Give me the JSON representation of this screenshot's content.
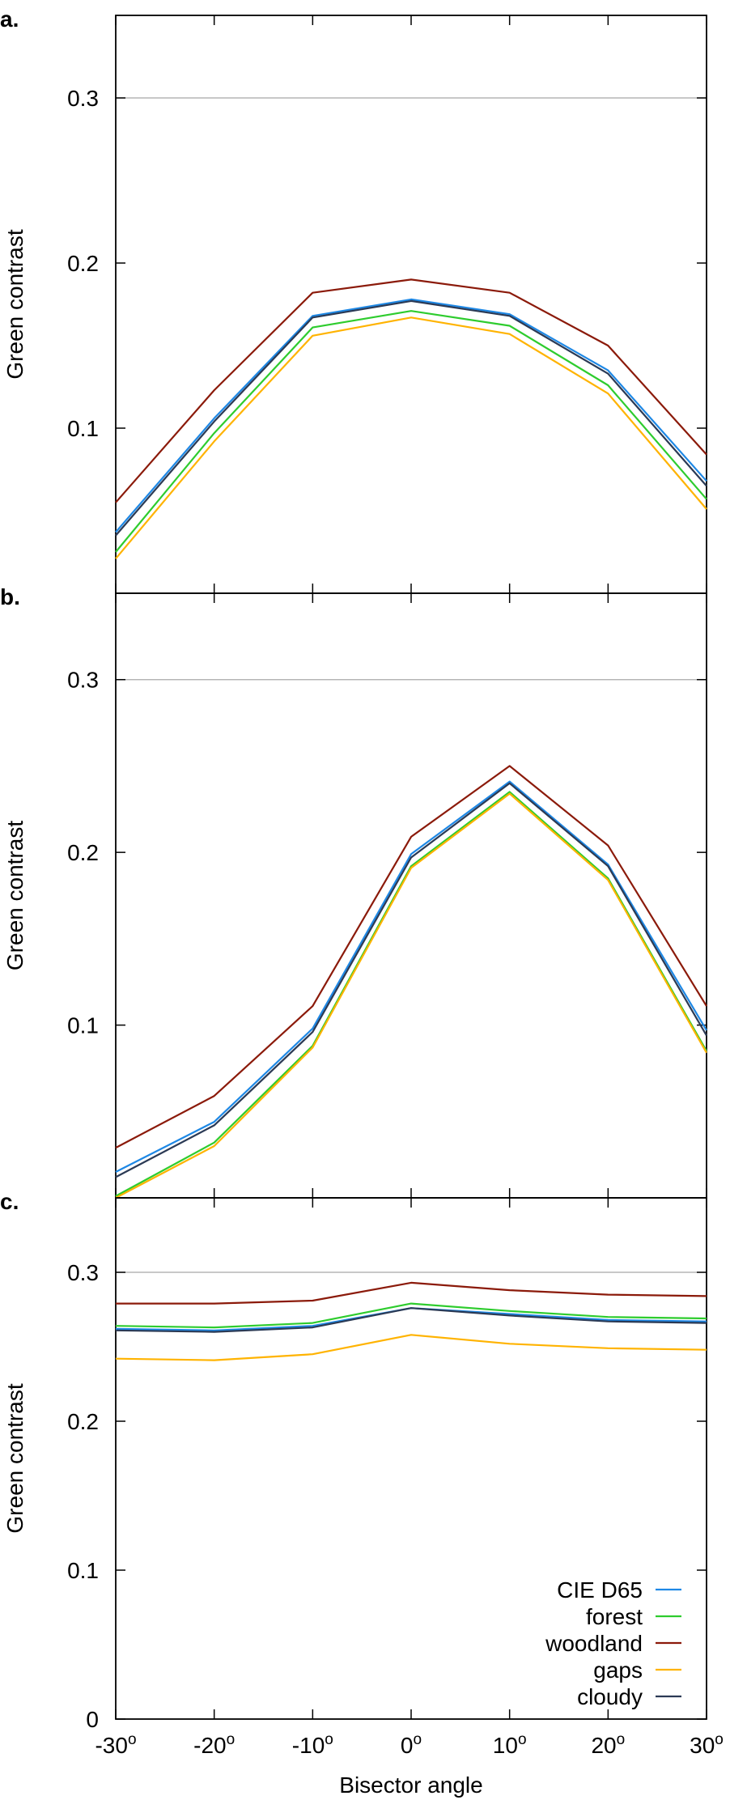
{
  "chart_data": [
    {
      "type": "line",
      "panel_label": "a.",
      "ylabel": "Green contrast",
      "xlabel": "",
      "ylim": [
        0,
        0.35
      ],
      "yticks": [
        "0.1",
        "0.2",
        "0.3"
      ],
      "ytick_values": [
        0.1,
        0.2,
        0.3
      ],
      "grid_y": [
        0.3
      ],
      "x": [
        -30,
        -20,
        -10,
        0,
        10,
        20,
        30
      ],
      "series": [
        {
          "name": "CIE D65",
          "color": "#1e88e5",
          "values": [
            0.037,
            0.106,
            0.168,
            0.178,
            0.169,
            0.135,
            0.068
          ]
        },
        {
          "name": "forest",
          "color": "#2ecc2e",
          "values": [
            0.025,
            0.097,
            0.161,
            0.171,
            0.162,
            0.126,
            0.057
          ]
        },
        {
          "name": "woodland",
          "color": "#8b1a0a",
          "values": [
            0.055,
            0.123,
            0.182,
            0.19,
            0.182,
            0.15,
            0.084
          ]
        },
        {
          "name": "gaps",
          "color": "#ffb300",
          "values": [
            0.021,
            0.092,
            0.156,
            0.167,
            0.157,
            0.121,
            0.051
          ]
        },
        {
          "name": "cloudy",
          "color": "#2b3a55",
          "values": [
            0.035,
            0.104,
            0.167,
            0.177,
            0.168,
            0.133,
            0.065
          ]
        }
      ]
    },
    {
      "type": "line",
      "panel_label": "b.",
      "ylabel": "Green contrast",
      "xlabel": "",
      "ylim": [
        0,
        0.35
      ],
      "yticks": [
        "0.1",
        "0.2",
        "0.3"
      ],
      "ytick_values": [
        0.1,
        0.2,
        0.3
      ],
      "grid_y": [
        0.3
      ],
      "x": [
        -30,
        -20,
        -10,
        0,
        10,
        20,
        30
      ],
      "series": [
        {
          "name": "CIE D65",
          "color": "#1e88e5",
          "values": [
            0.015,
            0.044,
            0.098,
            0.199,
            0.241,
            0.193,
            0.097
          ]
        },
        {
          "name": "forest",
          "color": "#2ecc2e",
          "values": [
            0.001,
            0.032,
            0.088,
            0.192,
            0.235,
            0.185,
            0.085
          ]
        },
        {
          "name": "woodland",
          "color": "#8b1a0a",
          "values": [
            0.029,
            0.059,
            0.111,
            0.209,
            0.25,
            0.204,
            0.111
          ]
        },
        {
          "name": "gaps",
          "color": "#ffb300",
          "values": [
            0.0,
            0.03,
            0.087,
            0.191,
            0.234,
            0.184,
            0.084
          ]
        },
        {
          "name": "cloudy",
          "color": "#2b3a55",
          "values": [
            0.012,
            0.042,
            0.096,
            0.197,
            0.24,
            0.192,
            0.094
          ]
        }
      ]
    },
    {
      "type": "line",
      "panel_label": "c.",
      "ylabel": "Green contrast",
      "xlabel": "Bisector angle",
      "ylim": [
        0,
        0.35
      ],
      "yticks": [
        "0",
        "0.1",
        "0.2",
        "0.3"
      ],
      "ytick_values": [
        0,
        0.1,
        0.2,
        0.3
      ],
      "grid_y": [
        0.3
      ],
      "x": [
        -30,
        -20,
        -10,
        0,
        10,
        20,
        30
      ],
      "xticks": [
        "-30",
        "-20",
        "-10",
        "0",
        "10",
        "20",
        "30"
      ],
      "xtick_suffix": "o",
      "legend_position": "bottom-right",
      "series": [
        {
          "name": "CIE D65",
          "color": "#1e88e5",
          "values": [
            0.262,
            0.261,
            0.264,
            0.276,
            0.272,
            0.268,
            0.267
          ]
        },
        {
          "name": "forest",
          "color": "#2ecc2e",
          "values": [
            0.264,
            0.263,
            0.266,
            0.279,
            0.274,
            0.27,
            0.269
          ]
        },
        {
          "name": "woodland",
          "color": "#8b1a0a",
          "values": [
            0.279,
            0.279,
            0.281,
            0.293,
            0.288,
            0.285,
            0.284
          ]
        },
        {
          "name": "gaps",
          "color": "#ffb300",
          "values": [
            0.242,
            0.241,
            0.245,
            0.258,
            0.252,
            0.249,
            0.248
          ]
        },
        {
          "name": "cloudy",
          "color": "#2b3a55",
          "values": [
            0.261,
            0.26,
            0.263,
            0.276,
            0.271,
            0.267,
            0.266
          ]
        }
      ]
    }
  ]
}
